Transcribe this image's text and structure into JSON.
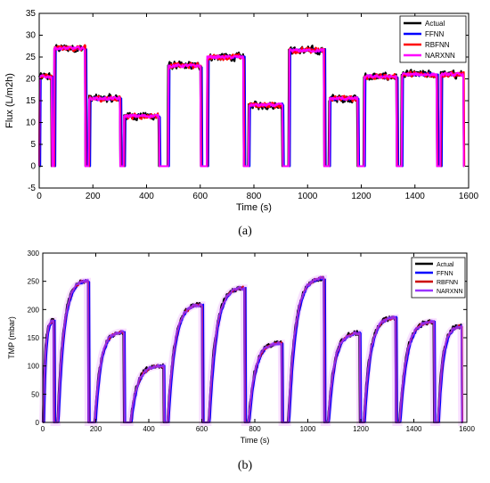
{
  "chart_data": [
    {
      "type": "line",
      "panel_caption": "(a)",
      "xlabel": "Time (s)",
      "ylabel": "Flux (L/m2h)",
      "xlim": [
        0,
        1600
      ],
      "ylim": [
        -5,
        35
      ],
      "x_ticks": [
        0,
        200,
        400,
        600,
        800,
        1000,
        1200,
        1400,
        1600
      ],
      "y_ticks": [
        -5,
        0,
        5,
        10,
        15,
        20,
        25,
        30,
        35
      ],
      "legend_position": "top-right",
      "series": [
        {
          "name": "Actual",
          "color": "#000000"
        },
        {
          "name": "FFNN",
          "color": "#0000ff"
        },
        {
          "name": "RBFNN",
          "color": "#ff0000"
        },
        {
          "name": "NARXNN",
          "color": "#ff00ff"
        }
      ],
      "segments": [
        {
          "start": 0,
          "end": 45,
          "level": 20.5
        },
        {
          "start": 55,
          "end": 170,
          "level": 27
        },
        {
          "start": 185,
          "end": 300,
          "level": 15.5
        },
        {
          "start": 315,
          "end": 445,
          "level": 11.5
        },
        {
          "start": 480,
          "end": 600,
          "level": 23
        },
        {
          "start": 625,
          "end": 760,
          "level": 25
        },
        {
          "start": 780,
          "end": 905,
          "level": 14
        },
        {
          "start": 930,
          "end": 1060,
          "level": 26.5
        },
        {
          "start": 1080,
          "end": 1185,
          "level": 15.5
        },
        {
          "start": 1210,
          "end": 1330,
          "level": 20.5
        },
        {
          "start": 1350,
          "end": 1480,
          "level": 21
        },
        {
          "start": 1495,
          "end": 1580,
          "level": 21
        }
      ]
    },
    {
      "type": "line",
      "panel_caption": "(b)",
      "xlabel": "Time (s)",
      "ylabel": "TMP (mbar)",
      "xlim": [
        0,
        1600
      ],
      "ylim": [
        0,
        300
      ],
      "x_ticks": [
        0,
        200,
        400,
        600,
        800,
        1000,
        1200,
        1400,
        1600
      ],
      "y_ticks": [
        0,
        50,
        100,
        150,
        200,
        250,
        300
      ],
      "legend_position": "top-right",
      "series": [
        {
          "name": "Actual",
          "color": "#000000"
        },
        {
          "name": "FFNN",
          "color": "#0000ff"
        },
        {
          "name": "RBFNN",
          "color": "#cc0000"
        },
        {
          "name": "NARXNN",
          "color": "#9933ff"
        }
      ],
      "segments": [
        {
          "start": 0,
          "end": 40,
          "level": 180
        },
        {
          "start": 55,
          "end": 170,
          "level": 250
        },
        {
          "start": 195,
          "end": 305,
          "level": 160
        },
        {
          "start": 330,
          "end": 455,
          "level": 100
        },
        {
          "start": 470,
          "end": 600,
          "level": 208
        },
        {
          "start": 625,
          "end": 760,
          "level": 238
        },
        {
          "start": 775,
          "end": 900,
          "level": 140
        },
        {
          "start": 925,
          "end": 1060,
          "level": 255
        },
        {
          "start": 1075,
          "end": 1195,
          "level": 158
        },
        {
          "start": 1210,
          "end": 1330,
          "level": 185
        },
        {
          "start": 1345,
          "end": 1475,
          "level": 178
        },
        {
          "start": 1490,
          "end": 1580,
          "level": 170
        }
      ]
    }
  ]
}
